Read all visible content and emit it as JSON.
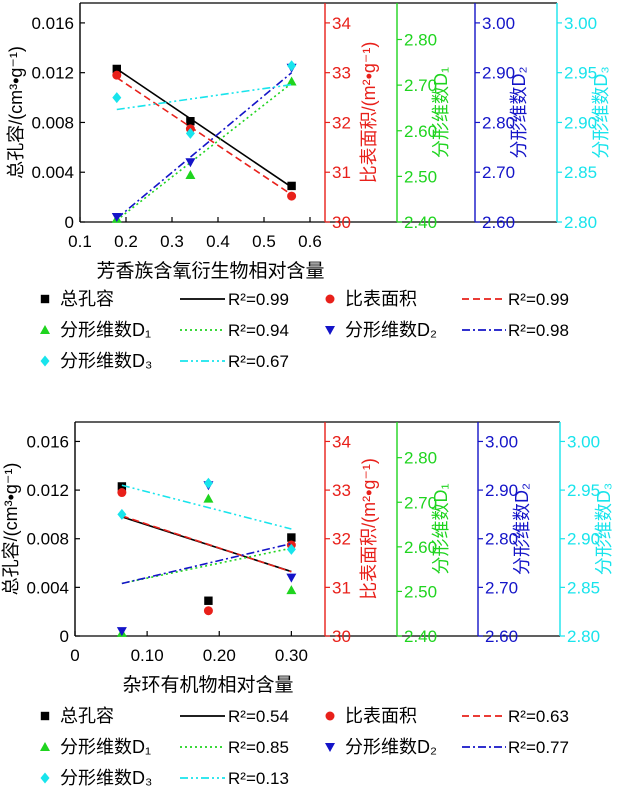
{
  "chart_data": [
    {
      "type": "scatter",
      "xlabel": "芳香族含氧衍生物相对含量",
      "xlim": [
        0.1,
        0.6
      ],
      "xticks": [
        "0.1",
        "0.2",
        "0.3",
        "0.4",
        "0.5",
        "0.6"
      ],
      "x": [
        0.18,
        0.34,
        0.56
      ],
      "axes": [
        {
          "key": "pv",
          "color": "#000000",
          "label": "总孔容/(cm³•g⁻¹)",
          "lim": [
            0,
            0.0176
          ],
          "ticks": [
            "0",
            "0.004",
            "0.008",
            "0.012",
            "0.016"
          ]
        },
        {
          "key": "ssa",
          "color": "#e8201a",
          "label": "比表面积/(m²•g⁻¹)",
          "lim": [
            30,
            34.4
          ],
          "ticks": [
            "30",
            "31",
            "32",
            "33",
            "34"
          ]
        },
        {
          "key": "d1",
          "color": "#1fd41f",
          "label": "分形维数D₁",
          "lim": [
            2.4,
            2.88
          ],
          "ticks": [
            "2.40",
            "2.50",
            "2.60",
            "2.70",
            "2.80"
          ]
        },
        {
          "key": "d2",
          "color": "#1414c8",
          "label": "分形维数D₂",
          "lim": [
            2.6,
            3.04
          ],
          "ticks": [
            "2.60",
            "2.70",
            "2.80",
            "2.90",
            "3.00"
          ]
        },
        {
          "key": "d3",
          "color": "#18e4ec",
          "label": "分形维数D₃",
          "lim": [
            2.8,
            3.02
          ],
          "ticks": [
            "2.80",
            "2.85",
            "2.90",
            "2.95",
            "3.00"
          ]
        }
      ],
      "series": [
        {
          "name": "总孔容",
          "axis": "pv",
          "marker": "square",
          "values": [
            0.0123,
            0.0081,
            0.0029
          ],
          "fit": {
            "label": "R²=0.99",
            "style": "solid",
            "line": [
              [
                0.18,
                0.0123
              ],
              [
                0.56,
                0.0028
              ]
            ]
          }
        },
        {
          "name": "比表面积",
          "axis": "ssa",
          "marker": "circle",
          "values": [
            32.95,
            31.87,
            30.52
          ],
          "fit": {
            "label": "R²=0.99",
            "style": "dashed",
            "line": [
              [
                0.18,
                32.9
              ],
              [
                0.56,
                30.55
              ]
            ]
          }
        },
        {
          "name": "分形维数D₁",
          "axis": "d1",
          "marker": "triangle-up",
          "values": [
            2.407,
            2.503,
            2.708
          ],
          "fit": {
            "label": "R²=0.94",
            "style": "dotted",
            "line": [
              [
                0.18,
                2.404
              ],
              [
                0.56,
                2.704
              ]
            ]
          }
        },
        {
          "name": "分形维数D₂",
          "axis": "d2",
          "marker": "triangle-down",
          "values": [
            2.61,
            2.72,
            2.91
          ],
          "fit": {
            "label": "R²=0.98",
            "style": "dashdot",
            "line": [
              [
                0.18,
                2.607
              ],
              [
                0.56,
                2.9
              ]
            ]
          }
        },
        {
          "name": "分形维数D₃",
          "axis": "d3",
          "marker": "diamond",
          "values": [
            2.925,
            2.889,
            2.957
          ],
          "fit": {
            "label": "R²=0.67",
            "style": "dashdotdot",
            "line": [
              [
                0.18,
                2.913
              ],
              [
                0.56,
                2.938
              ]
            ]
          }
        }
      ],
      "legend": {
        "placement": "bottom",
        "columns": 4
      }
    },
    {
      "type": "scatter",
      "xlabel": "杂环有机物相对含量",
      "xlim": [
        0,
        0.33
      ],
      "xticks": [
        "0",
        "0.10",
        "0.20",
        "0.30"
      ],
      "x": [
        0.065,
        0.185,
        0.3
      ],
      "axes": [
        {
          "key": "pv",
          "color": "#000000",
          "label": "总孔容/(cm³•g⁻¹)",
          "lim": [
            0,
            0.0176
          ],
          "ticks": [
            "0",
            "0.004",
            "0.008",
            "0.012",
            "0.016"
          ]
        },
        {
          "key": "ssa",
          "color": "#e8201a",
          "label": "比表面积/(m²•g⁻¹)",
          "lim": [
            30,
            34.4
          ],
          "ticks": [
            "30",
            "31",
            "32",
            "33",
            "34"
          ]
        },
        {
          "key": "d1",
          "color": "#1fd41f",
          "label": "分形维数D₁",
          "lim": [
            2.4,
            2.88
          ],
          "ticks": [
            "2.40",
            "2.50",
            "2.60",
            "2.70",
            "2.80"
          ]
        },
        {
          "key": "d2",
          "color": "#1414c8",
          "label": "分形维数D₂",
          "lim": [
            2.6,
            3.04
          ],
          "ticks": [
            "2.60",
            "2.70",
            "2.80",
            "2.90",
            "3.00"
          ]
        },
        {
          "key": "d3",
          "color": "#18e4ec",
          "label": "分形维数D₃",
          "lim": [
            2.8,
            3.02
          ],
          "ticks": [
            "2.80",
            "2.85",
            "2.90",
            "2.95",
            "3.00"
          ]
        }
      ],
      "series": [
        {
          "name": "总孔容",
          "axis": "pv",
          "marker": "square",
          "values": [
            0.0123,
            0.0029,
            0.0081
          ],
          "fit": {
            "label": "R²=0.54",
            "style": "solid",
            "line": [
              [
                0.065,
                0.0098
              ],
              [
                0.3,
                0.0053
              ]
            ]
          }
        },
        {
          "name": "比表面积",
          "axis": "ssa",
          "marker": "circle",
          "values": [
            32.95,
            30.52,
            31.87
          ],
          "fit": {
            "label": "R²=0.63",
            "style": "dashed",
            "line": [
              [
                0.065,
                32.47
              ],
              [
                0.3,
                31.32
              ]
            ]
          }
        },
        {
          "name": "分形维数D₁",
          "axis": "d1",
          "marker": "triangle-up",
          "values": [
            2.407,
            2.708,
            2.503
          ],
          "fit": {
            "label": "R²=0.85",
            "style": "dotted",
            "line": [
              [
                0.065,
                2.518
              ],
              [
                0.3,
                2.597
              ]
            ]
          }
        },
        {
          "name": "分形维数D₂",
          "axis": "d2",
          "marker": "triangle-down",
          "values": [
            2.61,
            2.91,
            2.72
          ],
          "fit": {
            "label": "R²=0.77",
            "style": "dashdot",
            "line": [
              [
                0.065,
                2.708
              ],
              [
                0.3,
                2.79
              ]
            ]
          }
        },
        {
          "name": "分形维数D₃",
          "axis": "d3",
          "marker": "diamond",
          "values": [
            2.925,
            2.957,
            2.889
          ],
          "fit": {
            "label": "R²=0.13",
            "style": "dashdotdot",
            "line": [
              [
                0.065,
                2.955
              ],
              [
                0.3,
                2.91
              ]
            ]
          }
        }
      ],
      "legend": {
        "placement": "bottom",
        "columns": 4
      }
    }
  ]
}
